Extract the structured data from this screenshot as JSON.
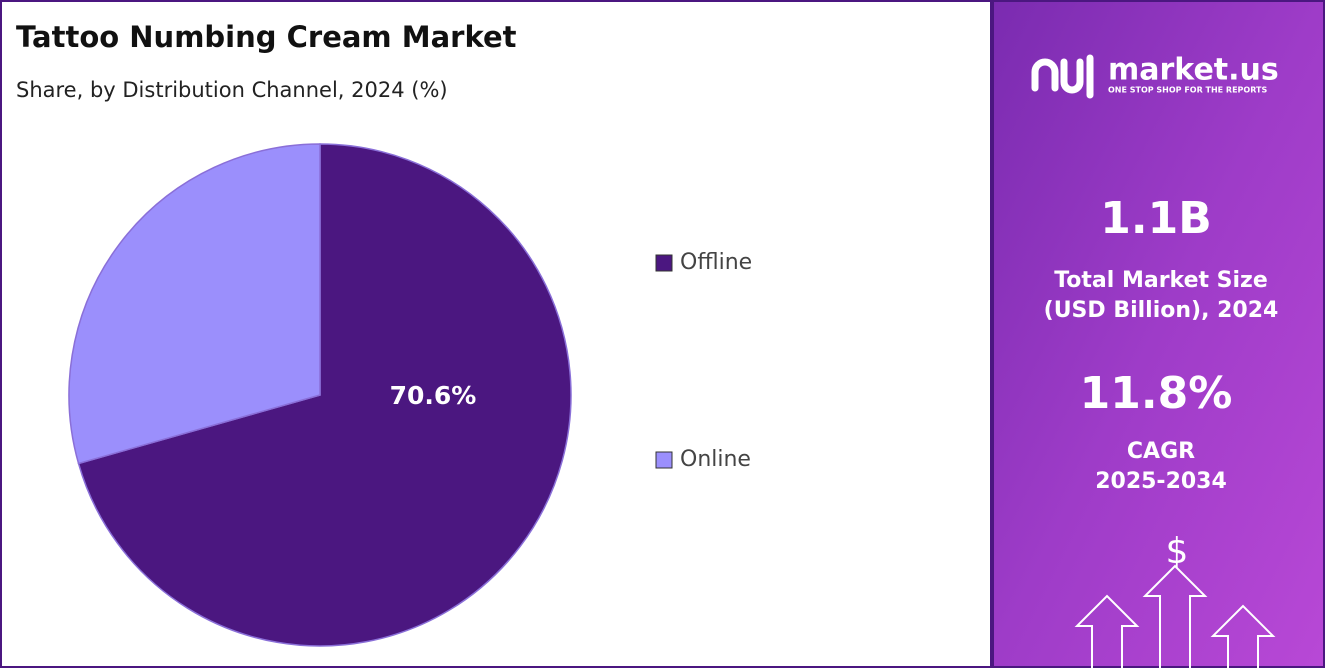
{
  "chart_data": {
    "type": "pie",
    "title": "Tattoo Numbing Cream Market",
    "subtitle": "Share, by Distribution Channel, 2024 (%)",
    "categories": [
      "Offline",
      "Online"
    ],
    "values": [
      70.6,
      29.4
    ],
    "value_labels": [
      "70.6%",
      null
    ],
    "colors": [
      "#4b1780",
      "#9b8ffc"
    ]
  },
  "panel": {
    "brand": "market.us",
    "tagline": "ONE STOP SHOP FOR THE REPORTS",
    "market_size": "1.1B",
    "market_size_label": [
      "Total Market Size",
      "(USD Billion), 2024"
    ],
    "cagr": "11.8%",
    "cagr_label": [
      "CAGR",
      "2025-2034"
    ],
    "icon": "$"
  }
}
